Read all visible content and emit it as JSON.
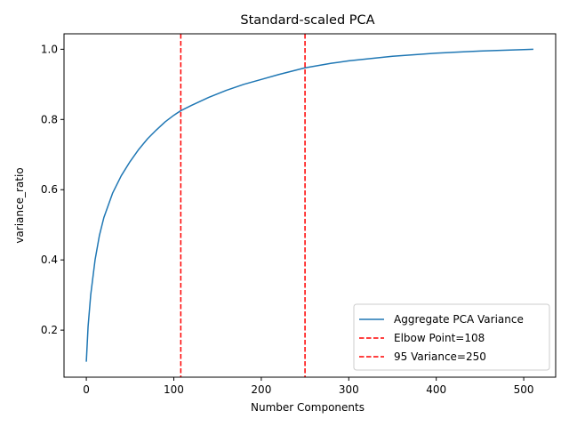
{
  "chart_data": {
    "type": "line",
    "title": "Standard-scaled PCA",
    "xlabel": "Number Components",
    "ylabel": "variance_ratio",
    "xlim": [
      -25.5,
      536.5
    ],
    "ylim": [
      0.066,
      1.044
    ],
    "xticks": [
      0,
      100,
      200,
      300,
      400,
      500
    ],
    "yticks": [
      0.2,
      0.4,
      0.6,
      0.8,
      1.0
    ],
    "xtick_labels": [
      "0",
      "100",
      "200",
      "300",
      "400",
      "500"
    ],
    "ytick_labels": [
      "0.2",
      "0.4",
      "0.6",
      "0.8",
      "1.0"
    ],
    "grid": false,
    "legend_position": "lower-right",
    "series": [
      {
        "name": "Aggregate PCA Variance",
        "color": "#1f77b4",
        "x": [
          0,
          2,
          5,
          10,
          15,
          20,
          30,
          40,
          50,
          60,
          70,
          80,
          90,
          100,
          108,
          120,
          140,
          160,
          180,
          200,
          220,
          250,
          280,
          300,
          350,
          400,
          450,
          500,
          511
        ],
        "y": [
          0.11,
          0.21,
          0.3,
          0.4,
          0.47,
          0.52,
          0.59,
          0.64,
          0.68,
          0.715,
          0.745,
          0.77,
          0.793,
          0.812,
          0.825,
          0.84,
          0.863,
          0.883,
          0.9,
          0.914,
          0.928,
          0.947,
          0.96,
          0.967,
          0.98,
          0.989,
          0.995,
          0.999,
          1.0
        ]
      }
    ],
    "vlines": [
      {
        "name": "Elbow Point=108",
        "x": 108,
        "color": "#ff0000",
        "style": "dashed"
      },
      {
        "name": "95 Variance=250",
        "x": 250,
        "color": "#ff0000",
        "style": "dashed"
      }
    ]
  }
}
